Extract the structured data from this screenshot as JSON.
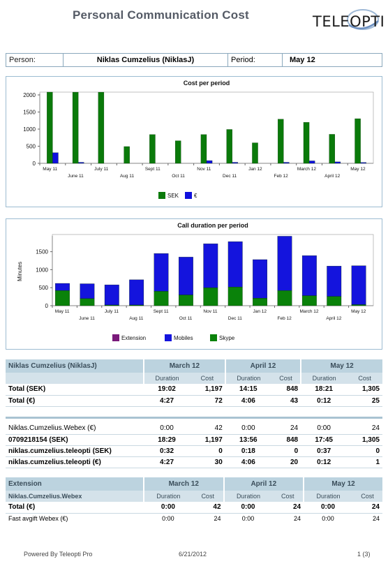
{
  "header": {
    "title": "Personal Communication Cost",
    "logo_text": "TELEOPTI"
  },
  "person_bar": {
    "person_label": "Person:",
    "person_value": "Niklas Cumzelius (NiklasJ)",
    "period_label": "Period:",
    "period_value": "May 12"
  },
  "colors": {
    "sek": "#0a7a0a",
    "eur": "#1010dd",
    "extension": "#7a1a7a",
    "mobiles": "#1414dd",
    "skype": "#0a820a"
  },
  "chart_data": [
    {
      "type": "bar",
      "title": "Cost per period",
      "categories": [
        "May 11",
        "June 11",
        "July 11",
        "Aug 11",
        "Sept 11",
        "Oct 11",
        "Nov 11",
        "Dec 11",
        "Jan 12",
        "Feb 12",
        "March 12",
        "April 12",
        "May 12"
      ],
      "series": [
        {
          "name": "SEK",
          "values": [
            2100,
            2080,
            2080,
            490,
            840,
            660,
            840,
            990,
            600,
            1290,
            1197,
            848,
            1305
          ]
        },
        {
          "name": "€",
          "values": [
            310,
            30,
            0,
            0,
            0,
            0,
            80,
            30,
            0,
            30,
            72,
            43,
            25
          ]
        }
      ],
      "ylim": [
        0,
        2000
      ],
      "yticks": [
        0,
        500,
        1000,
        1500,
        2000
      ],
      "legend": "bottom",
      "grid": false
    },
    {
      "type": "bar",
      "stacked": true,
      "title": "Call duration per period",
      "ylabel": "Minutes",
      "categories": [
        "May 11",
        "June 11",
        "July 11",
        "Aug 11",
        "Sept 11",
        "Oct 11",
        "Nov 11",
        "Dec 11",
        "Jan 12",
        "Feb 12",
        "March 12",
        "April 12",
        "May 12"
      ],
      "series": [
        {
          "name": "Extension",
          "values": [
            0,
            0,
            0,
            0,
            0,
            0,
            0,
            0,
            0,
            0,
            0,
            0,
            0
          ]
        },
        {
          "name": "Skype",
          "values": [
            420,
            200,
            20,
            20,
            400,
            300,
            500,
            520,
            210,
            420,
            280,
            260,
            30
          ]
        },
        {
          "name": "Mobiles",
          "values": [
            200,
            410,
            560,
            700,
            1050,
            1050,
            1220,
            1260,
            1070,
            1510,
            1110,
            840,
            1080
          ]
        }
      ],
      "ylim": [
        0,
        1900
      ],
      "yticks": [
        0,
        500,
        1000,
        1500
      ],
      "legend": "bottom",
      "grid": false
    }
  ],
  "table1": {
    "name": "Niklas Cumzelius (NiklasJ)",
    "periods": [
      "March 12",
      "April 12",
      "May 12"
    ],
    "duration_label": "Duration",
    "cost_label": "Cost",
    "totals": [
      {
        "label": "Total (SEK)",
        "v": [
          "19:02",
          "1,197",
          "14:15",
          "848",
          "18:21",
          "1,305"
        ]
      },
      {
        "label": "Total (€)",
        "v": [
          "4:27",
          "72",
          "4:06",
          "43",
          "0:12",
          "25"
        ]
      }
    ],
    "rows": [
      {
        "label": "Niklas.Cumzelius.Webex (€)",
        "v": [
          "0:00",
          "42",
          "0:00",
          "24",
          "0:00",
          "24"
        ]
      },
      {
        "label": "0709218154 (SEK)",
        "v": [
          "18:29",
          "1,197",
          "13:56",
          "848",
          "17:45",
          "1,305"
        ]
      },
      {
        "label": "niklas.cumzelius.teleopti (SEK)",
        "v": [
          "0:32",
          "0",
          "0:18",
          "0",
          "0:37",
          "0"
        ]
      },
      {
        "label": "niklas.cumzelius.teleopti (€)",
        "v": [
          "4:27",
          "30",
          "4:06",
          "20",
          "0:12",
          "1"
        ]
      }
    ]
  },
  "table2": {
    "name": "Extension",
    "subname": "Niklas.Cumzelius.Webex",
    "periods": [
      "March 12",
      "April 12",
      "May 12"
    ],
    "duration_label": "Duration",
    "cost_label": "Cost",
    "total": {
      "label": "Total (€)",
      "v": [
        "0:00",
        "42",
        "0:00",
        "24",
        "0:00",
        "24"
      ]
    },
    "rows": [
      {
        "label": "Fast avgift Webex (€)",
        "v": [
          "0:00",
          "24",
          "0:00",
          "24",
          "0:00",
          "24"
        ]
      }
    ]
  },
  "footer": {
    "powered": "Powered By Teleopti Pro",
    "date": "6/21/2012",
    "page": "1 (3)"
  }
}
